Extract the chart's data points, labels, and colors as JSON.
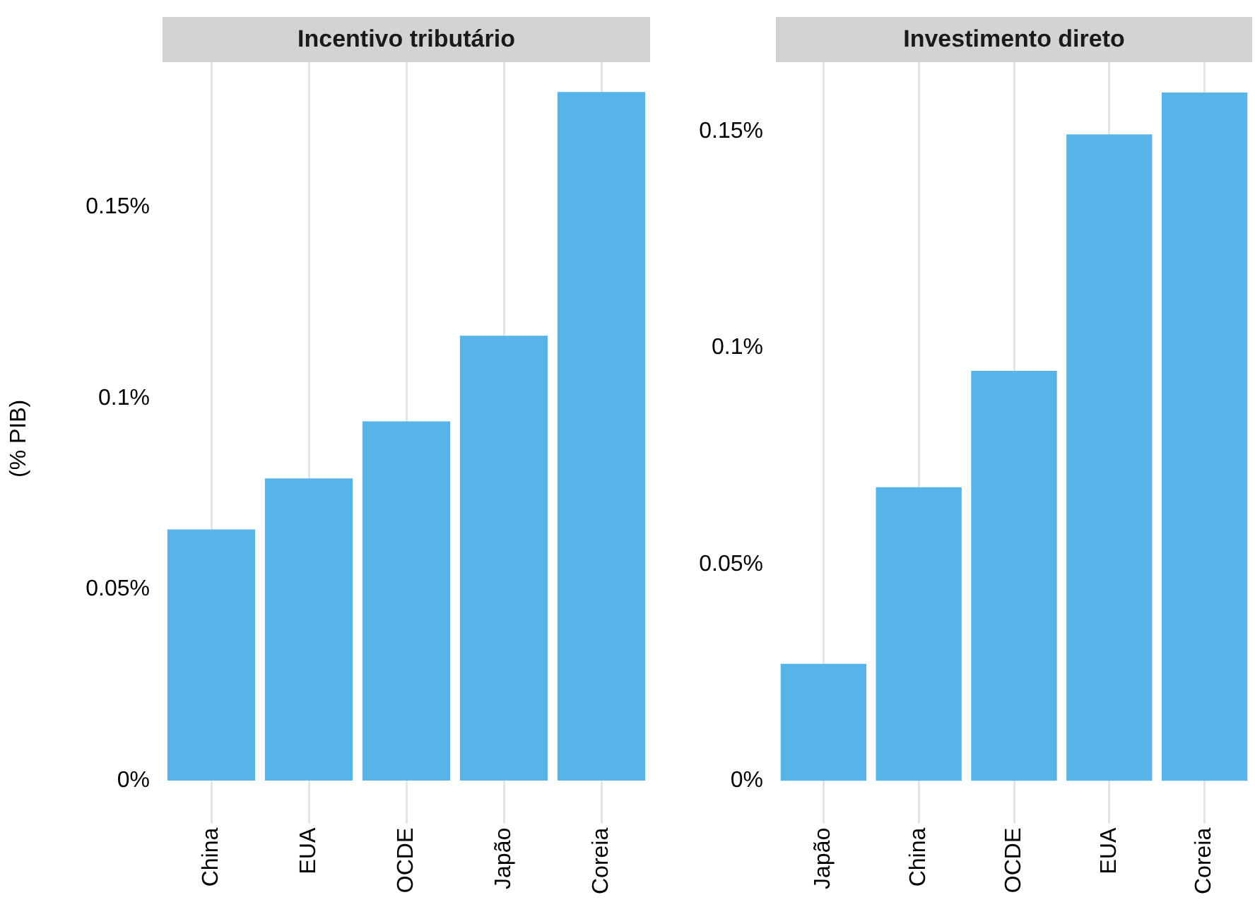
{
  "chart_data": [
    {
      "type": "bar",
      "title": "Incentivo tributário",
      "ylabel": "(% PIB)",
      "categories": [
        "China",
        "EUA",
        "OCDE",
        "Japão",
        "Coreia"
      ],
      "values": [
        0.0657,
        0.0791,
        0.094,
        0.1164,
        0.1802
      ],
      "color": "#56b4e9",
      "ylim": [
        -0.009,
        0.188
      ],
      "yticks": [
        {
          "value": 0,
          "label": "0%"
        },
        {
          "value": 0.05,
          "label": "0.05%"
        },
        {
          "value": 0.1,
          "label": "0.1%"
        },
        {
          "value": 0.15,
          "label": "0.15%"
        }
      ],
      "grid": "x",
      "legend": false
    },
    {
      "type": "bar",
      "title": "Investimento direto",
      "categories": [
        "Japão",
        "China",
        "OCDE",
        "EUA",
        "Coreia"
      ],
      "values": [
        0.027,
        0.0678,
        0.0947,
        0.1493,
        0.159
      ],
      "color": "#56b4e9",
      "ylim": [
        -0.0079,
        0.166
      ],
      "yticks": [
        {
          "value": 0,
          "label": "0%"
        },
        {
          "value": 0.05,
          "label": "0.05%"
        },
        {
          "value": 0.1,
          "label": "0.1%"
        },
        {
          "value": 0.15,
          "label": "0.15%"
        }
      ],
      "grid": "x",
      "legend": false
    }
  ]
}
